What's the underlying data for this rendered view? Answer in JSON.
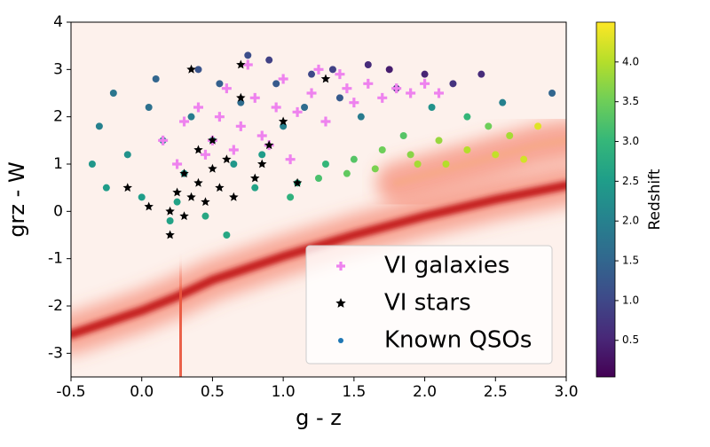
{
  "chart_data": {
    "type": "scatter",
    "xlabel": "g - z",
    "ylabel": "grz - W",
    "xlim": [
      -0.5,
      3.0
    ],
    "ylim": [
      -3.5,
      4
    ],
    "xticks": [
      -0.5,
      {
        "value": 0,
        "label": "0.0"
      },
      0.5,
      {
        "value": 1,
        "label": "1.0"
      },
      1.5,
      {
        "value": 2,
        "label": "2.0"
      },
      2.5,
      {
        "value": 3,
        "label": "3.0"
      }
    ],
    "yticks": [
      -3,
      -2,
      -1,
      0,
      1,
      2,
      3,
      4
    ],
    "density_ridges": [
      {
        "x": [
          -0.5,
          0.0,
          0.25,
          0.5,
          1.0,
          1.5,
          2.0,
          2.5,
          3.0
        ],
        "y": [
          -2.6,
          -2.1,
          -1.8,
          -1.45,
          -0.95,
          -0.5,
          -0.1,
          0.25,
          0.55
        ],
        "color": "#c41a1c"
      },
      {
        "x": [
          0.28,
          0.27,
          0.28
        ],
        "y": [
          -3.5,
          -2.5,
          -1.7
        ],
        "color": "#e8533b"
      },
      {
        "x": [
          1.8,
          2.3,
          2.8,
          3.0
        ],
        "y": [
          0.6,
          1.0,
          1.4,
          1.5
        ],
        "color": "#f7a98a"
      }
    ],
    "colorbar": {
      "label": "Redshift",
      "clim": [
        0.04,
        4.5
      ],
      "ticks": [
        0.5,
        {
          "value": 1,
          "label": "1.0"
        },
        1.5,
        {
          "value": 2,
          "label": "2.0"
        },
        2.5,
        {
          "value": 3,
          "label": "3.0"
        },
        3.5,
        {
          "value": 4,
          "label": "4.0"
        }
      ]
    },
    "series": [
      {
        "name": "VI galaxies",
        "marker": "plus",
        "color": "#ee82ee",
        "x": [
          0.3,
          0.4,
          0.5,
          0.6,
          0.7,
          0.8,
          0.9,
          1.0,
          1.1,
          1.2,
          1.3,
          1.4,
          1.5,
          1.6,
          1.7,
          1.8,
          1.9,
          2.0,
          2.1,
          0.45,
          0.55,
          0.65,
          0.75,
          0.85,
          0.95,
          1.05,
          0.15,
          0.25,
          1.25,
          1.45
        ],
        "y": [
          1.9,
          2.2,
          1.5,
          2.6,
          1.8,
          2.4,
          1.4,
          2.8,
          2.1,
          2.5,
          1.9,
          2.9,
          2.3,
          2.7,
          2.4,
          2.6,
          2.5,
          2.7,
          2.5,
          1.2,
          2.0,
          1.3,
          3.1,
          1.6,
          2.2,
          1.1,
          1.5,
          1.0,
          3.0,
          2.6
        ]
      },
      {
        "name": "VI stars",
        "marker": "star",
        "color": "#000000",
        "x": [
          0.2,
          0.25,
          0.3,
          0.3,
          0.35,
          0.4,
          0.4,
          0.45,
          0.5,
          0.5,
          0.55,
          0.6,
          0.65,
          0.7,
          0.8,
          0.9,
          1.0,
          1.1,
          0.2,
          0.35,
          0.7,
          1.3,
          -0.1,
          0.05,
          0.85
        ],
        "y": [
          0.0,
          0.4,
          -0.1,
          0.8,
          0.3,
          0.6,
          1.3,
          0.2,
          0.9,
          1.5,
          0.5,
          1.1,
          0.3,
          3.1,
          0.7,
          1.4,
          1.9,
          0.6,
          -0.5,
          3.0,
          2.4,
          2.8,
          0.5,
          0.1,
          1.0
        ]
      },
      {
        "name": "Known QSOs",
        "marker": "dot",
        "color": "#1f77b4",
        "x": [
          -0.3,
          -0.2,
          -0.1,
          0.0,
          0.1,
          0.2,
          0.3,
          0.4,
          0.5,
          0.6,
          0.7,
          0.8,
          0.9,
          1.0,
          1.1,
          1.2,
          1.3,
          1.4,
          1.5,
          1.6,
          1.7,
          1.8,
          1.9,
          2.0,
          2.1,
          2.2,
          2.3,
          2.4,
          2.5,
          2.6,
          2.7,
          2.9,
          -0.35,
          -0.25,
          0.05,
          0.15,
          0.25,
          0.35,
          0.45,
          0.55,
          0.65,
          0.75,
          0.85,
          0.95,
          1.05,
          1.15,
          1.25,
          1.35,
          1.45,
          1.55,
          1.65,
          1.75,
          1.85,
          1.95,
          2.05,
          2.15,
          2.3,
          2.45,
          2.55,
          2.8
        ],
        "y": [
          1.8,
          2.5,
          1.2,
          0.3,
          2.8,
          -0.2,
          0.8,
          3.0,
          1.5,
          -0.5,
          2.3,
          0.5,
          3.2,
          1.8,
          0.6,
          2.9,
          1.0,
          2.4,
          1.1,
          3.1,
          1.3,
          2.6,
          1.2,
          2.9,
          1.5,
          2.7,
          1.3,
          2.9,
          1.2,
          1.6,
          1.1,
          2.5,
          1.0,
          0.5,
          2.2,
          1.5,
          0.2,
          2.0,
          -0.1,
          2.7,
          1.0,
          3.3,
          1.2,
          2.7,
          0.3,
          2.2,
          0.7,
          3.0,
          0.8,
          2.0,
          0.9,
          3.0,
          1.6,
          1.0,
          2.2,
          1.0,
          2.0,
          1.8,
          2.3,
          1.8
        ],
        "redshift": [
          2.0,
          1.8,
          2.3,
          2.5,
          1.5,
          2.6,
          2.4,
          1.2,
          2.2,
          2.7,
          1.6,
          2.6,
          0.9,
          2.0,
          2.8,
          1.0,
          3.0,
          1.3,
          3.3,
          0.6,
          3.5,
          0.8,
          3.7,
          0.5,
          3.8,
          0.7,
          4.0,
          0.6,
          4.1,
          3.9,
          4.2,
          1.5,
          2.4,
          2.5,
          1.7,
          2.2,
          2.6,
          1.9,
          2.7,
          1.4,
          2.4,
          1.1,
          2.5,
          1.3,
          2.9,
          1.6,
          3.2,
          0.9,
          3.4,
          1.9,
          3.6,
          0.4,
          3.3,
          3.9,
          2.3,
          4.0,
          3.0,
          3.5,
          2.0,
          4.3
        ]
      }
    ]
  }
}
